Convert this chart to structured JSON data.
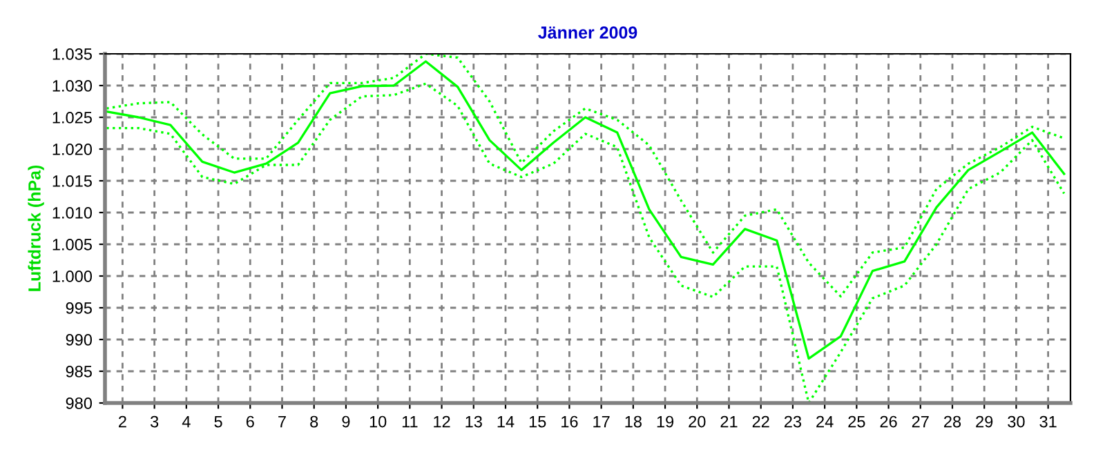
{
  "chart_data": {
    "type": "line",
    "title": "Jänner 2009",
    "ylabel": "Luftdruck (hPa)",
    "x": [
      1.5,
      2.5,
      3.5,
      4.5,
      5.5,
      6.5,
      7.5,
      8.5,
      9.5,
      10.5,
      11.5,
      12.5,
      13.5,
      14.5,
      15.5,
      16.5,
      17.5,
      18.5,
      19.5,
      20.5,
      21.5,
      22.5,
      23.5,
      24.5,
      25.5,
      26.5,
      27.5,
      28.5,
      29.5,
      30.5,
      31.5
    ],
    "series": [
      {
        "color": "#00ff00",
        "line_style": "solid",
        "values": [
          1025.9,
          1025.0,
          1023.8,
          1018.0,
          1016.3,
          1017.7,
          1021.0,
          1028.8,
          1029.9,
          1030.0,
          1033.8,
          1029.8,
          1021.4,
          1016.7,
          1021.0,
          1025.0,
          1022.6,
          1010.5,
          1003.0,
          1001.8,
          1007.4,
          1005.6,
          987.0,
          990.5,
          1000.8,
          1002.3,
          1010.8,
          1016.7,
          1019.6,
          1022.6,
          1016.1
        ]
      },
      {
        "color": "#00ff00",
        "line_style": "dotted",
        "values": [
          1026.4,
          1027.2,
          1027.4,
          1022.3,
          1018.5,
          1018.5,
          1024.6,
          1030.4,
          1030.4,
          1031.2,
          1035.0,
          1034.4,
          1027.5,
          1017.8,
          1022.8,
          1026.4,
          1024.6,
          1020.6,
          1011.9,
          1003.7,
          1009.5,
          1010.5,
          1002.1,
          996.8,
          1003.7,
          1004.5,
          1013.7,
          1017.7,
          1020.3,
          1023.5,
          1021.7
        ]
      },
      {
        "color": "#00ff00",
        "line_style": "dotted",
        "values": [
          1023.3,
          1023.3,
          1022.4,
          1015.6,
          1014.5,
          1017.5,
          1017.5,
          1024.6,
          1028.3,
          1028.5,
          1030.3,
          1026.8,
          1017.7,
          1015.6,
          1017.7,
          1022.4,
          1020.3,
          1006.1,
          998.5,
          996.7,
          1001.5,
          1001.5,
          980.0,
          988.0,
          996.5,
          998.5,
          1005.0,
          1013.7,
          1016.3,
          1021.4,
          1013.0
        ]
      }
    ],
    "xlim": [
      1.45,
      31.7
    ],
    "xticks": [
      2,
      3,
      4,
      5,
      6,
      7,
      8,
      9,
      10,
      11,
      12,
      13,
      14,
      15,
      16,
      17,
      18,
      19,
      20,
      21,
      22,
      23,
      24,
      25,
      26,
      27,
      28,
      29,
      30,
      31
    ],
    "ylim": [
      980,
      1035
    ],
    "yticks": [
      {
        "value": 980,
        "label": "980"
      },
      {
        "value": 985,
        "label": "985"
      },
      {
        "value": 990,
        "label": "990"
      },
      {
        "value": 995,
        "label": "995"
      },
      {
        "value": 1000,
        "label": "1.000"
      },
      {
        "value": 1005,
        "label": "1.005"
      },
      {
        "value": 1010,
        "label": "1.010"
      },
      {
        "value": 1015,
        "label": "1.015"
      },
      {
        "value": 1020,
        "label": "1.020"
      },
      {
        "value": 1025,
        "label": "1.025"
      },
      {
        "value": 1030,
        "label": "1.030"
      },
      {
        "value": 1035,
        "label": "1.035"
      }
    ],
    "grid": true,
    "marker": "none"
  }
}
